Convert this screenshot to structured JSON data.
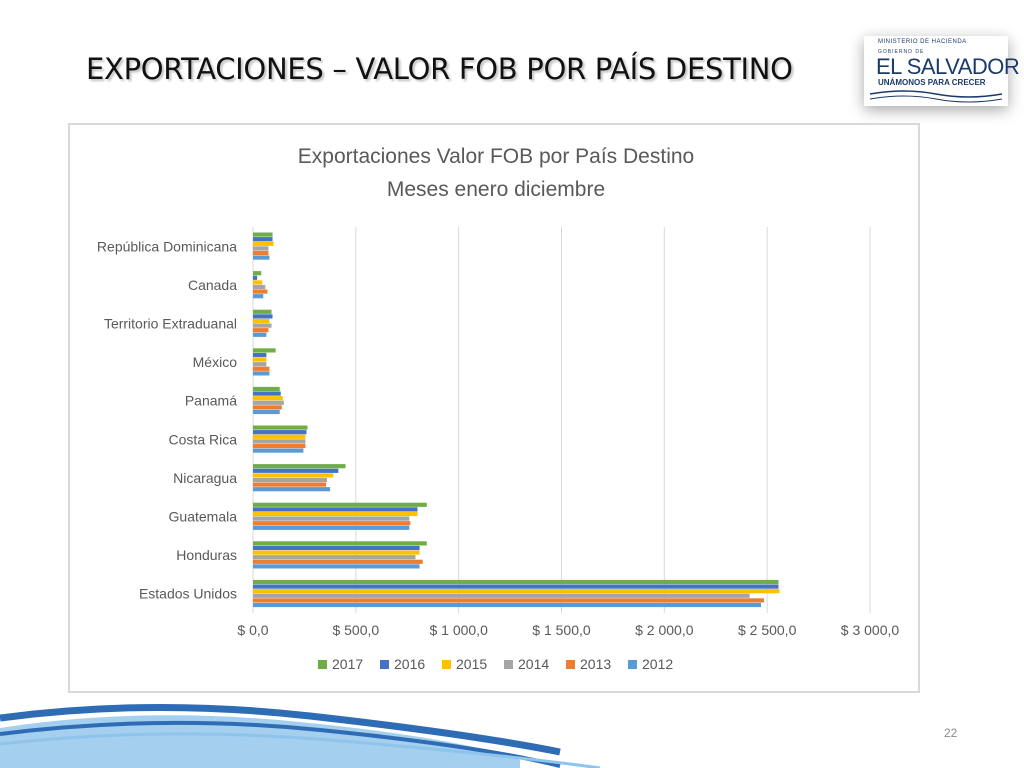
{
  "slide": {
    "title": "EXPORTACIONES –  VALOR FOB POR PAÍS DESTINO",
    "page_number": "22"
  },
  "logo": {
    "ministry": "MINISTERIO DE HACIENDA",
    "government": "GOBIERNO DE",
    "name": "EL SALVADOR",
    "motto": "UNÁMONOS PARA CRECER"
  },
  "colors": {
    "accent_blue": "#1b3a6b",
    "wave_blue": "#2e6db5",
    "wave_light": "#5aa7e0",
    "gridline": "#d9d9d9",
    "axis_text": "#595959"
  },
  "chart_data": {
    "type": "bar",
    "orientation": "horizontal",
    "title": "Exportaciones Valor FOB por País Destino",
    "subtitle": "Meses enero diciembre",
    "categories": [
      "República Dominicana",
      "Canada",
      "Territorio Extraduanal",
      "México",
      "Panamá",
      "Costa Rica",
      "Nicaragua",
      "Guatemala",
      "Honduras",
      "Estados Unidos"
    ],
    "x_ticks": [
      0,
      500,
      1000,
      1500,
      2000,
      2500,
      3000
    ],
    "x_tick_labels": [
      "$ 0,0",
      "$ 500,0",
      "$ 1 000,0",
      "$ 1 500,0",
      "$ 2 000,0",
      "$ 2 500,0",
      "$ 3 000,0"
    ],
    "xlim": [
      0,
      3000
    ],
    "grid": "vertical",
    "legend_position": "bottom",
    "series": [
      {
        "name": "2017",
        "color": "#70ad47",
        "values": [
          95,
          40,
          90,
          110,
          130,
          265,
          450,
          845,
          845,
          2555
        ]
      },
      {
        "name": "2016",
        "color": "#4472c4",
        "values": [
          95,
          20,
          95,
          65,
          135,
          260,
          415,
          800,
          810,
          2555
        ]
      },
      {
        "name": "2015",
        "color": "#ffc000",
        "values": [
          100,
          45,
          80,
          65,
          145,
          255,
          390,
          800,
          810,
          2560
        ]
      },
      {
        "name": "2014",
        "color": "#a5a5a5",
        "values": [
          75,
          60,
          90,
          65,
          150,
          255,
          360,
          760,
          790,
          2415
        ]
      },
      {
        "name": "2013",
        "color": "#ed7d31",
        "values": [
          75,
          70,
          75,
          80,
          140,
          255,
          355,
          765,
          825,
          2485
        ]
      },
      {
        "name": "2012",
        "color": "#5b9bd5",
        "values": [
          80,
          50,
          65,
          80,
          130,
          245,
          375,
          760,
          810,
          2470
        ]
      }
    ]
  }
}
